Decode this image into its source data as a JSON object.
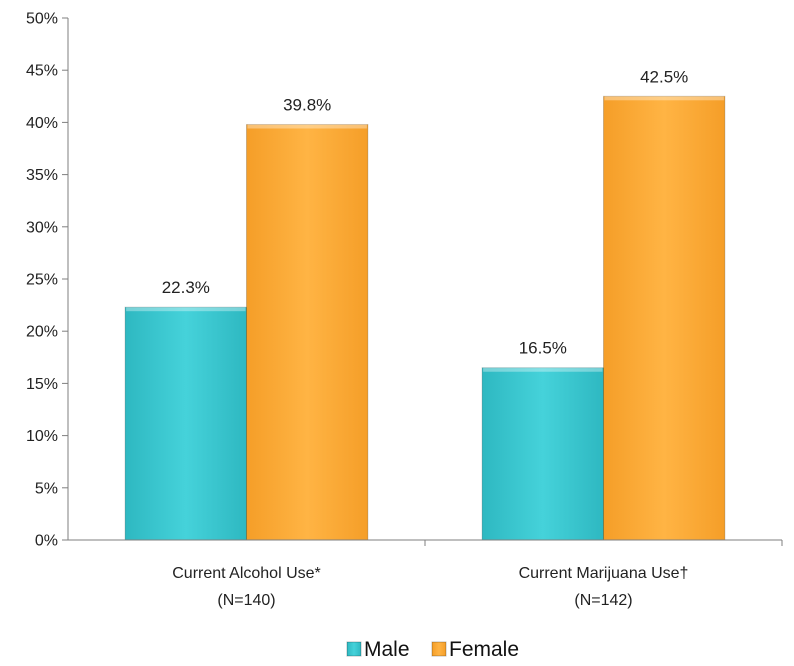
{
  "chart_data": {
    "type": "bar",
    "categories": [
      {
        "line1": "Current Alcohol Use*",
        "line2": "(N=140)"
      },
      {
        "line1": "Current Marijuana Use†",
        "line2": "(N=142)"
      }
    ],
    "series": [
      {
        "name": "Male",
        "color": "#3ecbd3",
        "values": [
          22.3,
          16.5
        ],
        "labels": [
          "22.3%",
          "16.5%"
        ]
      },
      {
        "name": "Female",
        "color": "#ffad3a",
        "values": [
          39.8,
          42.5
        ],
        "labels": [
          "39.8%",
          "42.5%"
        ]
      }
    ],
    "ylim": [
      0,
      50
    ],
    "yticks": [
      "0%",
      "5%",
      "10%",
      "15%",
      "20%",
      "25%",
      "30%",
      "35%",
      "40%",
      "45%",
      "50%"
    ],
    "legend_position": "bottom"
  }
}
